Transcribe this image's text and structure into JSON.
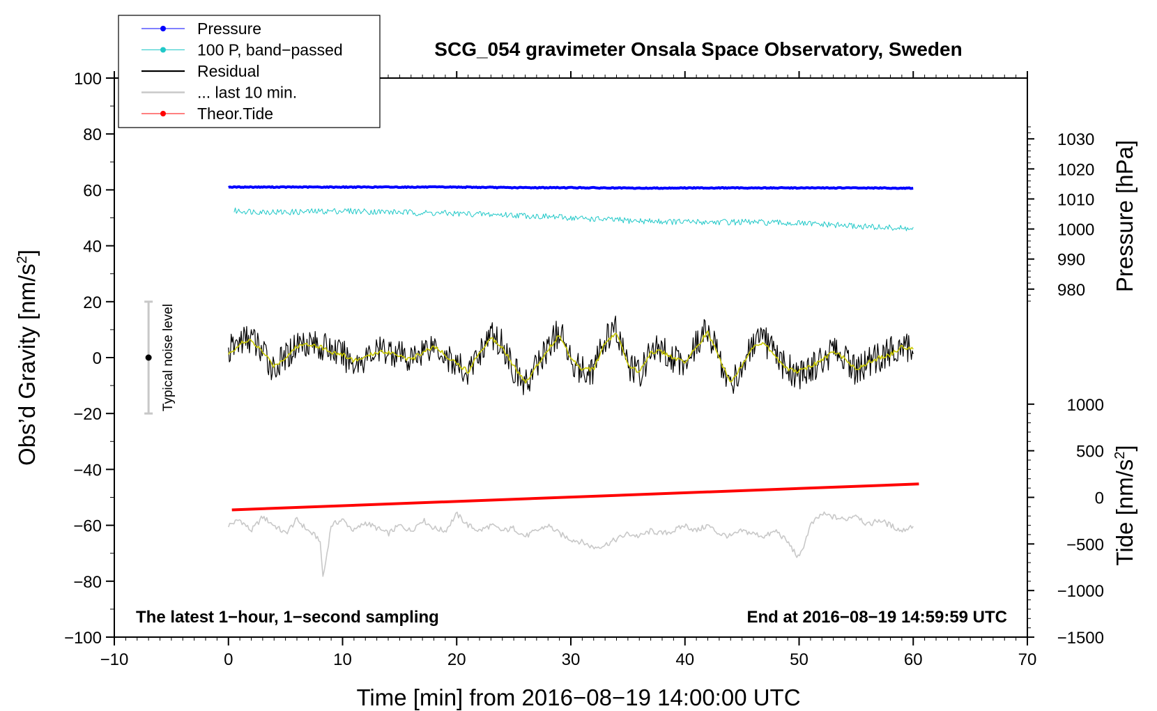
{
  "chart_data": {
    "type": "line",
    "title": "SCG_054 gravimeter Onsala Space Observatory, Sweden",
    "xlabel": "Time [min] from 2016−08−19 14:00:00 UTC",
    "ylabel": "Obs’d Gravity [nm/s",
    "ylabel_sup": "2",
    "ylabel_close": "]",
    "right_label_pressure": "Pressure [hPa]",
    "right_label_tide": "Tide [nm/s",
    "right_label_tide_sup": "2",
    "right_label_tide_close": "]",
    "annotation_left": "The latest 1−hour, 1−second sampling",
    "annotation_right": "End at 2016−08−19 14:59:59 UTC",
    "noise_label": "Typical noise level",
    "noise_level": {
      "x": -7,
      "center": 0,
      "low": -20,
      "high": 20
    },
    "xlim": [
      -10,
      70
    ],
    "ylim": [
      -100,
      100
    ],
    "x_ticks": [
      -10,
      0,
      10,
      20,
      30,
      40,
      50,
      60,
      70
    ],
    "x_tick_labels": [
      "−10",
      "0",
      "10",
      "20",
      "30",
      "40",
      "50",
      "60",
      "70"
    ],
    "y_ticks": [
      -100,
      -80,
      -60,
      -40,
      -20,
      0,
      20,
      40,
      60,
      80,
      100
    ],
    "y_tick_labels": [
      "−100",
      "−80",
      "−60",
      "−40",
      "−20",
      "0",
      "20",
      "40",
      "60",
      "80",
      "100"
    ],
    "pressure_axis": {
      "ticks": [
        980,
        990,
        1000,
        1010,
        1020,
        1030
      ],
      "tick_labels": [
        "980",
        "990",
        "1000",
        "1010",
        "1020",
        "1030"
      ],
      "left_equiv_per_hPa": 1.0,
      "left_equiv_at_1000": 46
    },
    "tide_axis": {
      "ticks": [
        -1500,
        -1000,
        -500,
        0,
        500,
        1000
      ],
      "tick_labels": [
        "−1500",
        "−1000",
        "−500",
        "0",
        "500",
        "1000"
      ],
      "left_equiv_per_nms2": 0.03334,
      "left_equiv_at_0": -50
    },
    "legend": [
      {
        "name": "Pressure",
        "color": "#0000ff",
        "marker": true
      },
      {
        "name": "100 P, band−passed",
        "color": "#20c8c8",
        "marker": true
      },
      {
        "name": "Residual",
        "color": "#000000",
        "marker": false
      },
      {
        "name": "... last 10 min.",
        "color": "#c8c8c8",
        "marker": false
      },
      {
        "name": "Theor.Tide",
        "color": "#ff0000",
        "marker": true
      }
    ],
    "series": [
      {
        "name": "Pressure",
        "color": "#0000ff",
        "x": [
          0,
          10,
          20,
          25,
          30,
          33,
          36,
          40,
          45,
          50,
          55,
          60
        ],
        "values": [
          61,
          61,
          61,
          60.8,
          60.8,
          60.7,
          60.6,
          60.7,
          60.7,
          60.7,
          60.7,
          60.6
        ]
      },
      {
        "name": "100 P, band−passed",
        "color": "#20c8c8",
        "x": [
          0.5,
          5,
          10,
          15,
          20,
          25,
          30,
          35,
          40,
          45,
          50,
          55,
          60
        ],
        "values": [
          52.5,
          52,
          52.5,
          52,
          51.5,
          51,
          50,
          49,
          48.5,
          48.5,
          48,
          47,
          46
        ]
      },
      {
        "name": "Residual",
        "color": "#000000",
        "x": [
          0,
          1,
          2,
          3,
          4,
          5,
          6,
          7,
          8,
          9,
          10,
          11,
          12,
          13,
          14,
          15,
          16,
          17,
          18,
          19,
          20,
          21,
          22,
          23,
          24,
          25,
          26,
          27,
          28,
          29,
          30,
          31,
          32,
          33,
          34,
          35,
          36,
          37,
          38,
          39,
          40,
          41,
          42,
          43,
          44,
          45,
          46,
          47,
          48,
          49,
          50,
          51,
          52,
          53,
          54,
          55,
          56,
          57,
          58,
          59,
          60
        ],
        "values": [
          2,
          6,
          7,
          2,
          -4,
          0,
          5,
          6,
          4,
          3,
          1,
          -2,
          0,
          2,
          3,
          1,
          -1,
          3,
          5,
          1,
          -3,
          -6,
          2,
          8,
          5,
          -4,
          -10,
          -3,
          4,
          9,
          0,
          -5,
          -4,
          6,
          10,
          -3,
          -6,
          2,
          3,
          0,
          -2,
          5,
          10,
          0,
          -10,
          -3,
          4,
          6,
          0,
          -4,
          -6,
          -4,
          -1,
          2,
          0,
          -5,
          -2,
          0,
          2,
          5,
          3
        ]
      },
      {
        "name": "Residual (smoothed)",
        "color": "#c8c800",
        "x": [
          0,
          1,
          2,
          3,
          4,
          5,
          6,
          7,
          8,
          9,
          10,
          11,
          12,
          13,
          14,
          15,
          16,
          17,
          18,
          19,
          20,
          21,
          22,
          23,
          24,
          25,
          26,
          27,
          28,
          29,
          30,
          31,
          32,
          33,
          34,
          35,
          36,
          37,
          38,
          39,
          40,
          41,
          42,
          43,
          44,
          45,
          46,
          47,
          48,
          49,
          50,
          51,
          52,
          53,
          54,
          55,
          56,
          57,
          58,
          59,
          60
        ],
        "values": [
          1,
          5,
          6,
          2,
          -3,
          0,
          4,
          5,
          4,
          2,
          1,
          -1,
          0,
          2,
          2,
          1,
          -1,
          2,
          4,
          1,
          -2,
          -5,
          2,
          7,
          4,
          -3,
          -9,
          -3,
          3,
          8,
          0,
          -4,
          -4,
          5,
          9,
          -3,
          -5,
          2,
          2,
          0,
          -2,
          4,
          9,
          0,
          -9,
          -3,
          4,
          5,
          0,
          -4,
          -5,
          -3,
          -1,
          2,
          0,
          -4,
          -2,
          0,
          1,
          4,
          3
        ]
      },
      {
        "name": "... last 10 min.",
        "color": "#c8c8c8",
        "x": [
          0,
          1,
          2,
          3,
          4,
          5,
          6,
          7,
          8,
          8.3,
          9,
          10,
          11,
          12,
          13,
          14,
          15,
          16,
          17,
          18,
          19,
          20,
          21,
          22,
          23,
          24,
          25,
          26,
          27,
          28,
          29,
          30,
          31,
          32,
          33,
          34,
          35,
          36,
          37,
          38,
          39,
          40,
          41,
          42,
          43,
          44,
          45,
          46,
          47,
          48,
          49,
          50,
          51,
          52,
          53,
          54,
          55,
          56,
          57,
          58,
          59,
          60
        ],
        "values": [
          -60,
          -58,
          -62,
          -57,
          -60,
          -63,
          -58,
          -62,
          -65,
          -79,
          -60,
          -58,
          -62,
          -59,
          -61,
          -63,
          -60,
          -62,
          -58,
          -61,
          -62,
          -56,
          -60,
          -62,
          -60,
          -62,
          -61,
          -64,
          -62,
          -60,
          -63,
          -65,
          -66,
          -68,
          -67,
          -65,
          -63,
          -64,
          -62,
          -63,
          -62,
          -60,
          -62,
          -60,
          -63,
          -64,
          -62,
          -63,
          -64,
          -62,
          -66,
          -72,
          -60,
          -56,
          -57,
          -58,
          -56,
          -60,
          -58,
          -60,
          -62,
          -60
        ]
      },
      {
        "name": "Theor.Tide",
        "color": "#ff0000",
        "x": [
          0.3,
          60.5
        ],
        "values": [
          -54.5,
          -45.2
        ]
      }
    ]
  }
}
